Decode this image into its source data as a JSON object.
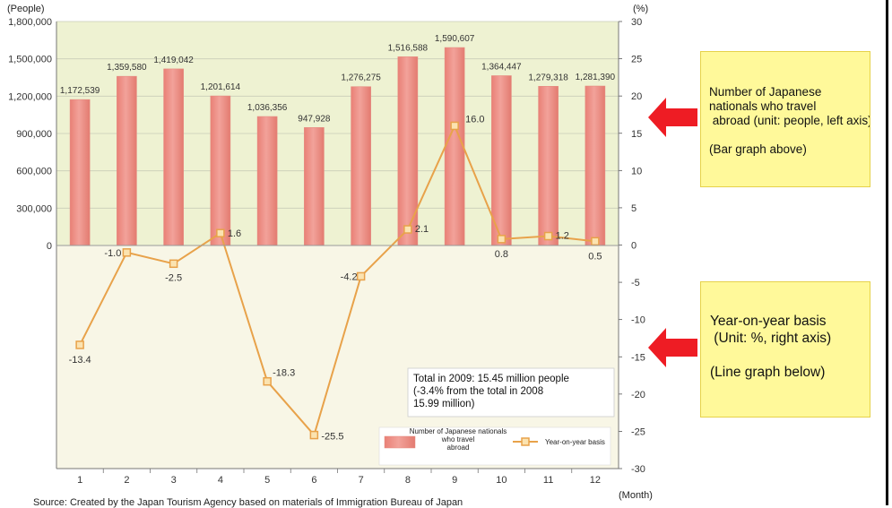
{
  "chart_data": {
    "type": "bar",
    "categories": [
      "1",
      "2",
      "3",
      "4",
      "5",
      "6",
      "7",
      "8",
      "9",
      "10",
      "11",
      "12"
    ],
    "series": [
      {
        "name": "Number of Japanese nationals who travel abroad",
        "type": "bar",
        "axis": "left",
        "values": [
          1172539,
          1359580,
          1419042,
          1201614,
          1036356,
          947928,
          1276275,
          1516588,
          1590607,
          1364447,
          1279318,
          1281390
        ]
      },
      {
        "name": "Year-on-year basis",
        "type": "line",
        "axis": "right",
        "values": [
          -13.4,
          -1.0,
          -2.5,
          1.6,
          -18.3,
          -25.5,
          -4.2,
          2.1,
          16.0,
          0.8,
          1.2,
          0.5
        ]
      }
    ],
    "bar_labels": [
      "1,172,539",
      "1,359,580",
      "1,419,042",
      "1,201,614",
      "1,036,356",
      "947,928",
      "1,276,275",
      "1,516,588",
      "1,590,607",
      "1,364,447",
      "1,279,318",
      "1,281,390"
    ],
    "line_labels": [
      "-13.4",
      "-1.0",
      "-2.5",
      "1.6",
      "-18.3",
      "-25.5",
      "-4.2",
      "2.1",
      "16.0",
      "0.8",
      "1.2",
      "0.5"
    ],
    "y_left_unit": "(People)",
    "y_right_unit": "(%)",
    "x_unit": "(Month)",
    "y_left_ticks": [
      "1,800,000",
      "1,500,000",
      "1,200,000",
      "900,000",
      "600,000",
      "300,000",
      "0"
    ],
    "y_left_range": [
      0,
      1800000
    ],
    "y_right_ticks": [
      "30",
      "25",
      "20",
      "15",
      "10",
      "5",
      "0",
      "-5",
      "-10",
      "-15",
      "-20",
      "-25",
      "-30"
    ],
    "y_right_range": [
      -30,
      30
    ],
    "legend": {
      "bar": "Number of Japanese nationals who travel abroad",
      "line": "Year-on-year basis",
      "placement": "bottom-right"
    },
    "annotation": "Total in 2009: 15.45 million people (-3.4% from the total in 2008 15.99 million)",
    "colors": {
      "bar": "#f2a29a",
      "line": "#e8a24a",
      "marker_fill": "#fbe3b0",
      "upper_bg": "#eef2d2",
      "lower_bg": "#f8f6e6"
    }
  },
  "callouts": {
    "bar_text": "Number of Japanese\nnationals who travel\n abroad (unit: people, left axis)\n\n(Bar graph above)",
    "line_text": "Year-on-year basis\n (Unit: %, right axis)\n\n(Line graph below)",
    "arrow_color": "#ee1c24",
    "bg_color": "#fff99a"
  },
  "source_note": "Source: Created by the Japan Tourism Agency based on materials of Immigration Bureau of Japan"
}
